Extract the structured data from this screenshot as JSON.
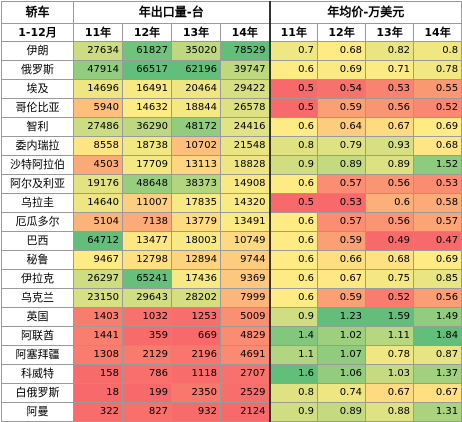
{
  "header": {
    "corner_top": "轿车",
    "corner_bottom": "1-12月",
    "group_exports": "年出口量-台",
    "group_prices": "年均价-万美元",
    "years": [
      "11年",
      "12年",
      "13年",
      "14年"
    ]
  },
  "colors": {
    "low": "#f8696b",
    "mid": "#ffeb84",
    "high": "#63be7b"
  },
  "chart_data": {
    "type": "table",
    "rows": [
      {
        "country": "伊朗",
        "exports": [
          27634,
          61827,
          35020,
          78529
        ],
        "prices": [
          "0.7",
          "0.68",
          "0.82",
          "0.8"
        ]
      },
      {
        "country": "俄罗斯",
        "exports": [
          47914,
          66517,
          62196,
          39747
        ],
        "prices": [
          "0.6",
          "0.69",
          "0.71",
          "0.78"
        ]
      },
      {
        "country": "埃及",
        "exports": [
          14696,
          16491,
          20464,
          29422
        ],
        "prices": [
          "0.5",
          "0.54",
          "0.53",
          "0.55"
        ]
      },
      {
        "country": "哥伦比亚",
        "exports": [
          5940,
          14632,
          18844,
          26578
        ],
        "prices": [
          "0.5",
          "0.59",
          "0.56",
          "0.52"
        ]
      },
      {
        "country": "智利",
        "exports": [
          27486,
          36290,
          48172,
          24416
        ],
        "prices": [
          "0.6",
          "0.64",
          "0.67",
          "0.69"
        ]
      },
      {
        "country": "委内瑞拉",
        "exports": [
          8558,
          18738,
          10702,
          21548
        ],
        "prices": [
          "0.8",
          "0.79",
          "0.93",
          "0.68"
        ]
      },
      {
        "country": "沙特阿拉伯",
        "exports": [
          4503,
          17709,
          13113,
          18828
        ],
        "prices": [
          "0.9",
          "0.89",
          "0.89",
          "1.52"
        ]
      },
      {
        "country": "阿尔及利亚",
        "exports": [
          19176,
          48648,
          38373,
          14908
        ],
        "prices": [
          "0.6",
          "0.57",
          "0.56",
          "0.53"
        ]
      },
      {
        "country": "乌拉圭",
        "exports": [
          14640,
          11007,
          17835,
          14320
        ],
        "prices": [
          "0.5",
          "0.53",
          "0.6",
          "0.58"
        ]
      },
      {
        "country": "厄瓜多尔",
        "exports": [
          5104,
          7138,
          13779,
          13491
        ],
        "prices": [
          "0.6",
          "0.57",
          "0.56",
          "0.57"
        ]
      },
      {
        "country": "巴西",
        "exports": [
          64712,
          13477,
          18003,
          10749
        ],
        "prices": [
          "0.6",
          "0.59",
          "0.49",
          "0.47"
        ]
      },
      {
        "country": "秘鲁",
        "exports": [
          9467,
          12798,
          12894,
          9744
        ],
        "prices": [
          "0.6",
          "0.66",
          "0.68",
          "0.69"
        ]
      },
      {
        "country": "伊拉克",
        "exports": [
          26297,
          65241,
          17436,
          9369
        ],
        "prices": [
          "0.6",
          "0.67",
          "0.75",
          "0.85"
        ]
      },
      {
        "country": "乌克兰",
        "exports": [
          23150,
          29643,
          28202,
          7999
        ],
        "prices": [
          "0.6",
          "0.59",
          "0.52",
          "0.56"
        ]
      },
      {
        "country": "英国",
        "exports": [
          1403,
          1032,
          1253,
          5009
        ],
        "prices": [
          "0.9",
          "1.23",
          "1.59",
          "1.49"
        ]
      },
      {
        "country": "阿联酋",
        "exports": [
          1441,
          359,
          669,
          4829
        ],
        "prices": [
          "1.4",
          "1.02",
          "1.11",
          "1.84"
        ]
      },
      {
        "country": "阿塞拜疆",
        "exports": [
          1308,
          2129,
          2196,
          4691
        ],
        "prices": [
          "1.1",
          "1.07",
          "0.78",
          "0.87"
        ]
      },
      {
        "country": "科威特",
        "exports": [
          158,
          786,
          1118,
          2707
        ],
        "prices": [
          "1.6",
          "1.06",
          "1.03",
          "1.37"
        ]
      },
      {
        "country": "白俄罗斯",
        "exports": [
          18,
          199,
          2350,
          2529
        ],
        "prices": [
          "0.8",
          "0.74",
          "0.67",
          "0.67"
        ]
      },
      {
        "country": "阿曼",
        "exports": [
          322,
          827,
          932,
          2124
        ],
        "prices": [
          "0.9",
          "0.89",
          "0.88",
          "1.31"
        ]
      }
    ]
  }
}
